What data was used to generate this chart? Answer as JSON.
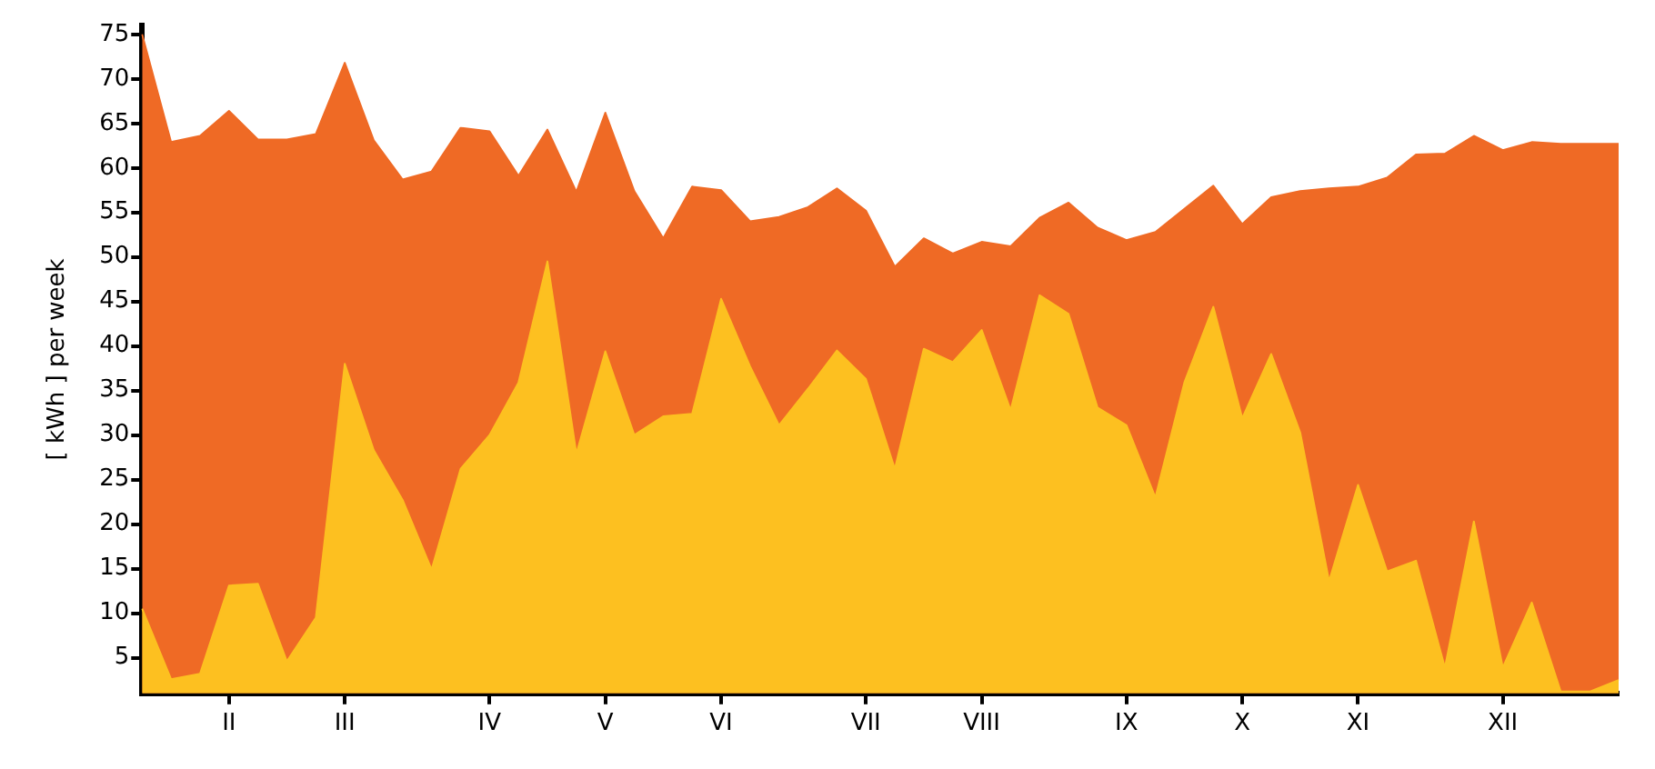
{
  "chart_data": {
    "type": "area",
    "ylabel": "[ kWh ] per week",
    "categories": [
      null,
      null,
      null,
      "II",
      null,
      null,
      null,
      "III",
      null,
      null,
      null,
      null,
      "IV",
      null,
      null,
      null,
      "V",
      null,
      null,
      null,
      "VI",
      null,
      null,
      null,
      null,
      "VII",
      null,
      null,
      null,
      "VIII",
      null,
      null,
      null,
      null,
      "IX",
      null,
      null,
      null,
      "X",
      null,
      null,
      null,
      "XI",
      null,
      null,
      null,
      null,
      "XII",
      null,
      null,
      null,
      null
    ],
    "series": [
      {
        "color": "#ef6a25",
        "values": [
          75,
          62.9,
          63.6,
          66.4,
          63.2,
          63.2,
          63.8,
          71.8,
          63.1,
          58.7,
          59.6,
          64.5,
          64.1,
          59.1,
          64.3,
          57.3,
          66.2,
          57.4,
          52.1,
          57.9,
          57.5,
          54.0,
          54.5,
          55.6,
          57.7,
          55.2,
          48.9,
          52.1,
          50.4,
          51.7,
          51.2,
          54.4,
          56.1,
          53.3,
          51.9,
          52.8,
          55.4,
          58.0,
          53.7,
          56.7,
          57.4,
          57.7,
          57.9,
          58.9,
          61.5,
          61.6,
          63.6,
          62.0,
          62.9,
          62.7,
          62.7,
          62.7
        ]
      },
      {
        "color": "#fdc020",
        "values": [
          10.5,
          2.6,
          3.2,
          13.1,
          13.3,
          4.6,
          9.5,
          38.0,
          28.3,
          22.7,
          14.9,
          26.2,
          30.0,
          35.9,
          49.5,
          27.9,
          39.4,
          30.0,
          32.1,
          32.4,
          45.3,
          37.7,
          31.1,
          35.2,
          39.5,
          36.3,
          26.2,
          39.7,
          38.2,
          41.8,
          32.8,
          45.7,
          43.6,
          33.1,
          31.1,
          23.0,
          35.9,
          44.4,
          31.9,
          39.1,
          30.3,
          13.6,
          24.4,
          14.7,
          15.9,
          3.9,
          20.3,
          3.9,
          11.2,
          1.2,
          1.2,
          2.5
        ]
      }
    ],
    "ylim": [
      1,
      76
    ],
    "yticks": [
      5,
      10,
      15,
      20,
      25,
      30,
      35,
      40,
      45,
      50,
      55,
      60,
      65,
      70,
      75
    ],
    "grid": false,
    "legend": false
  }
}
